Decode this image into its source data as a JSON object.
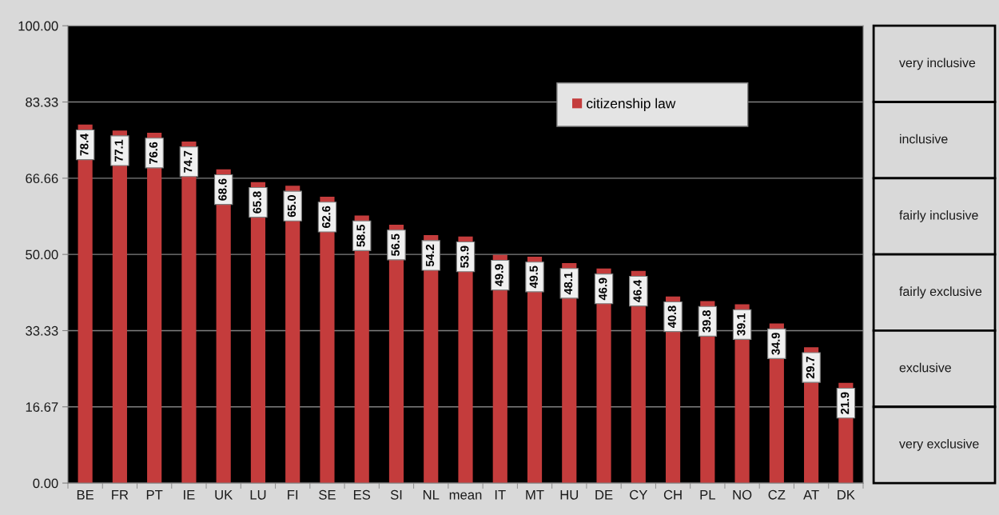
{
  "chart_data": {
    "type": "bar",
    "categories": [
      "BE",
      "FR",
      "PT",
      "IE",
      "UK",
      "LU",
      "FI",
      "SE",
      "ES",
      "SI",
      "NL",
      "mean",
      "IT",
      "MT",
      "HU",
      "DE",
      "CY",
      "CH",
      "PL",
      "NO",
      "CZ",
      "AT",
      "DK"
    ],
    "series": [
      {
        "name": "citizenship law",
        "color": "#c43c3c",
        "values": [
          78.4,
          77.1,
          76.6,
          74.7,
          68.6,
          65.8,
          65.0,
          62.6,
          58.5,
          56.5,
          54.2,
          53.9,
          49.9,
          49.5,
          48.1,
          46.9,
          46.4,
          40.8,
          39.8,
          39.1,
          34.9,
          29.7,
          21.9
        ],
        "value_labels": [
          "78.4",
          "77.1",
          "76.6",
          "74.7",
          "68.6",
          "65.8",
          "65.0",
          "62.6",
          "58.5",
          "56.5",
          "54.2",
          "53.9",
          "49.9",
          "49.5",
          "48.1",
          "46.9",
          "46.4",
          "40.8",
          "39.8",
          "39.1",
          "34.9",
          "29.7",
          "21.9"
        ]
      }
    ],
    "ylim": [
      0,
      100
    ],
    "yticks": [
      {
        "value": 0,
        "label": "0.00"
      },
      {
        "value": 16.67,
        "label": "16.67"
      },
      {
        "value": 33.33,
        "label": "33.33"
      },
      {
        "value": 50,
        "label": "50.00"
      },
      {
        "value": 66.66,
        "label": "66.66"
      },
      {
        "value": 83.33,
        "label": "83.33"
      },
      {
        "value": 100,
        "label": "100.00"
      }
    ],
    "annotations": [
      "very inclusive",
      "inclusive",
      "fairly inclusive",
      "fairly exclusive",
      "exclusive",
      "very exclusive"
    ],
    "grid": "y",
    "legend": "top right"
  }
}
